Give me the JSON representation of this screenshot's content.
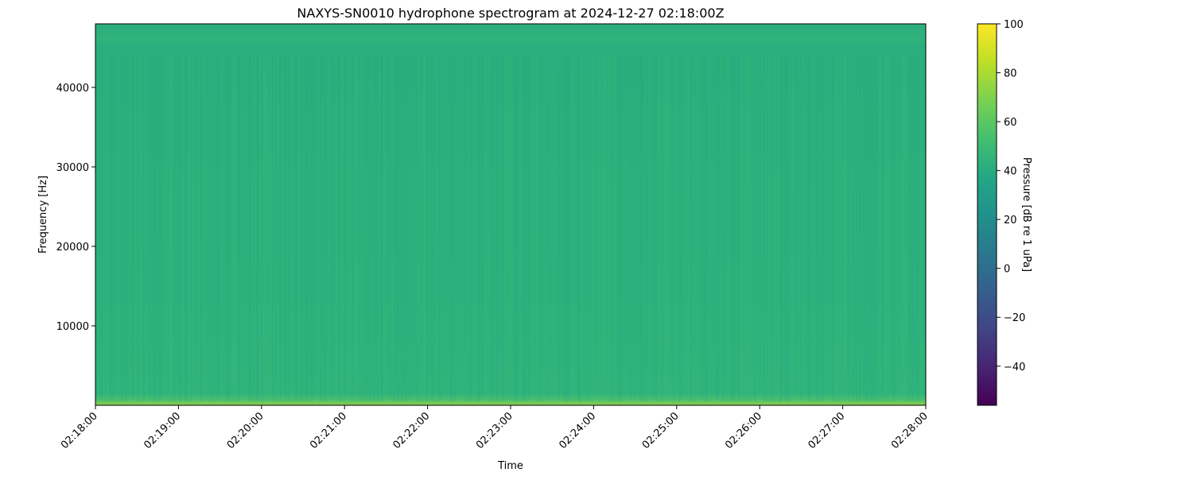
{
  "chart_data": {
    "type": "heatmap",
    "title": "NAXYS-SN0010 hydrophone spectrogram at 2024-12-27 02:18:00Z",
    "xlabel": "Time",
    "ylabel": "Frequency [Hz]",
    "x_ticks": [
      "02:18:00",
      "02:19:00",
      "02:20:00",
      "02:21:00",
      "02:22:00",
      "02:23:00",
      "02:24:00",
      "02:25:00",
      "02:26:00",
      "02:27:00",
      "02:28:00"
    ],
    "xlim": [
      "02:18:00",
      "02:28:00"
    ],
    "y_ticks": [
      10000,
      20000,
      30000,
      40000
    ],
    "ylim": [
      0,
      48000
    ],
    "colormap": "viridis",
    "colorbar": {
      "label": "Pressure [dB re 1 uPa]",
      "ticks": [
        100,
        80,
        60,
        40,
        20,
        0,
        -20,
        -40
      ],
      "range": [
        -56,
        100
      ]
    },
    "approx_level_db": 45,
    "grid": false
  }
}
